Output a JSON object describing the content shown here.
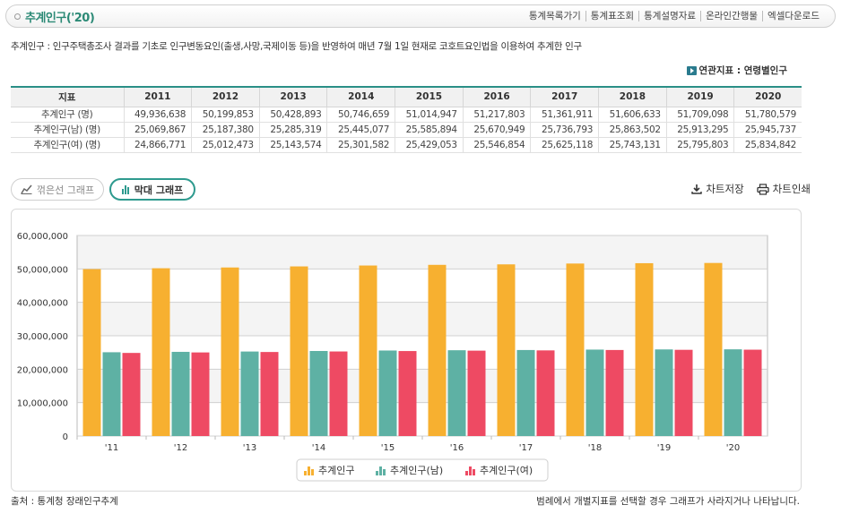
{
  "header": {
    "title": "추계인구('20)",
    "nav": [
      "통계목록가기",
      "통계표조회",
      "통계설명자료",
      "온라인간행물",
      "엑셀다운로드"
    ]
  },
  "description": "추계인구 : 인구주택총조사 결과를 기초로 인구변동요인(출생,사망,국제이동 등)을 반영하여 매년 7월 1일 현재로 코호트요인법을 이용하여 추계한 인구",
  "related_link": "연관지표 : 연령별인구",
  "table": {
    "header_label": "지표",
    "years": [
      "2011",
      "2012",
      "2013",
      "2014",
      "2015",
      "2016",
      "2017",
      "2018",
      "2019",
      "2020"
    ],
    "rows": [
      {
        "label": "추계인구 (명)",
        "values": [
          "49,936,638",
          "50,199,853",
          "50,428,893",
          "50,746,659",
          "51,014,947",
          "51,217,803",
          "51,361,911",
          "51,606,633",
          "51,709,098",
          "51,780,579"
        ]
      },
      {
        "label": "추계인구(남) (명)",
        "values": [
          "25,069,867",
          "25,187,380",
          "25,285,319",
          "25,445,077",
          "25,585,894",
          "25,670,949",
          "25,736,793",
          "25,863,502",
          "25,913,295",
          "25,945,737"
        ]
      },
      {
        "label": "추계인구(여) (명)",
        "values": [
          "24,866,771",
          "25,012,473",
          "25,143,574",
          "25,301,582",
          "25,429,053",
          "25,546,854",
          "25,625,118",
          "25,743,131",
          "25,795,803",
          "25,834,842"
        ]
      }
    ]
  },
  "toggles": {
    "line": "꺾은선 그래프",
    "bar": "막대 그래프",
    "active": "bar"
  },
  "actions": {
    "save": "차트저장",
    "print": "차트인쇄"
  },
  "chart_data": {
    "type": "bar",
    "categories": [
      "'11",
      "'12",
      "'13",
      "'14",
      "'15",
      "'16",
      "'17",
      "'18",
      "'19",
      "'20"
    ],
    "series": [
      {
        "name": "추계인구",
        "color": "#f7b030",
        "values": [
          49936638,
          50199853,
          50428893,
          50746659,
          51014947,
          51217803,
          51361911,
          51606633,
          51709098,
          51780579
        ]
      },
      {
        "name": "추계인구(남)",
        "color": "#5eb1a4",
        "values": [
          25069867,
          25187380,
          25285319,
          25445077,
          25585894,
          25670949,
          25736793,
          25863502,
          25913295,
          25945737
        ]
      },
      {
        "name": "추계인구(여)",
        "color": "#ee4a63",
        "values": [
          24866771,
          25012473,
          25143574,
          25301582,
          25429053,
          25546854,
          25625118,
          25743131,
          25795803,
          25834842
        ]
      }
    ],
    "ylim": [
      0,
      60000000
    ],
    "yticks": [
      "0",
      "10,000,000",
      "20,000,000",
      "30,000,000",
      "40,000,000",
      "50,000,000",
      "60,000,000"
    ],
    "legend_position": "bottom",
    "grid": true
  },
  "footer": {
    "source": "출처 : 통계청 장래인구추계",
    "note": "범례에서 개별지표를 선택할 경우 그래프가 사라지거나 나타납니다."
  }
}
